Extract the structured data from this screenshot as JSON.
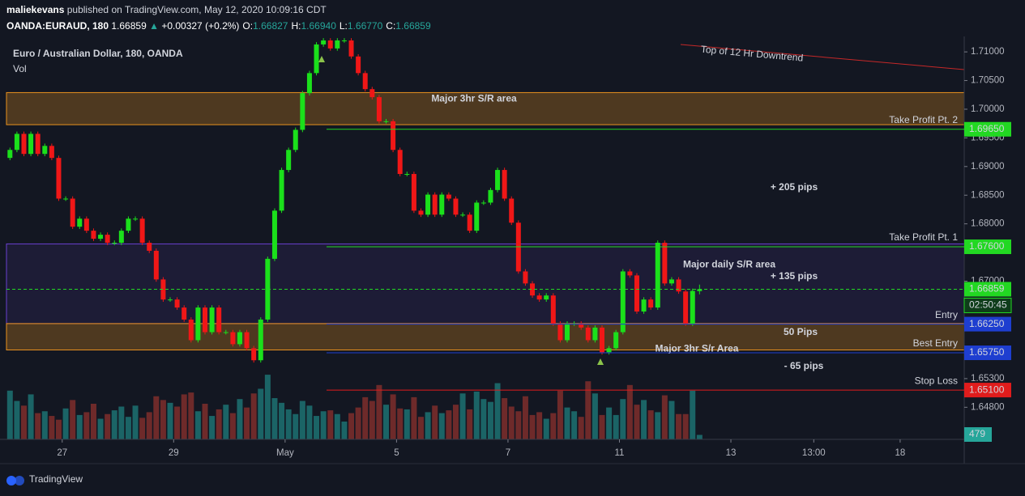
{
  "header": {
    "user": "maliekevans",
    "byline": "published on TradingView.com, May 12, 2020 10:09:16 CDT",
    "symbol": "OANDA:EURAUD, 180",
    "price": "1.66859",
    "arrow": "▲",
    "change": "+0.00327 (+0.2%)",
    "ohlc": [
      {
        "label": "O:",
        "value": "1.66827"
      },
      {
        "label": "H:",
        "value": "1.66940"
      },
      {
        "label": "L:",
        "value": "1.66770"
      },
      {
        "label": "C:",
        "value": "1.66859"
      }
    ]
  },
  "chart_data": {
    "type": "candlestick",
    "title": "Euro / Australian Dollar, 180, OANDA",
    "volume_label": "Vol",
    "open": [
      1.6915,
      1.6929,
      1.6957,
      1.6922,
      1.6957,
      1.6922,
      1.6936,
      1.6915,
      1.6844,
      1.6844,
      1.6795,
      1.6809,
      1.6788,
      1.6774,
      1.6781,
      1.6767,
      1.6767,
      1.6788,
      1.6809,
      1.6809,
      1.6767,
      1.6753,
      1.6703,
      1.6668,
      1.6668,
      1.6654,
      1.6633,
      1.6597,
      1.6654,
      1.6611,
      1.6654,
      1.6611,
      1.6611,
      1.659,
      1.6611,
      1.6583,
      1.6562,
      1.6633,
      1.6739,
      1.6823,
      1.6894,
      1.6929,
      1.6964,
      1.7028,
      1.7063,
      1.7113,
      1.712,
      1.7106,
      1.712,
      1.712,
      1.7092,
      1.7063,
      1.7035,
      1.7021,
      1.6979,
      1.6979,
      1.6929,
      1.6887,
      1.6887,
      1.6823,
      1.6816,
      1.6851,
      1.6816,
      1.6851,
      1.6844,
      1.6816,
      1.6816,
      1.6788,
      1.6837,
      1.6837,
      1.6859,
      1.6894,
      1.6844,
      1.6802,
      1.6717,
      1.6696,
      1.6675,
      1.6668,
      1.6675,
      1.6626,
      1.6597,
      1.6626,
      1.6626,
      1.6619,
      1.6597,
      1.6619,
      1.6576,
      1.6583,
      1.6611,
      1.6717,
      1.671,
      1.6647,
      1.6668,
      1.6654,
      1.6767,
      1.6696,
      1.6703,
      1.6682,
      1.6626,
      1.66827
    ],
    "high": [
      1.6933,
      1.6961,
      1.6961,
      1.6961,
      1.6961,
      1.694,
      1.694,
      1.6919,
      1.6848,
      1.6848,
      1.6813,
      1.6813,
      1.6792,
      1.6785,
      1.6785,
      1.6771,
      1.6792,
      1.6813,
      1.6813,
      1.6813,
      1.6771,
      1.6757,
      1.6707,
      1.6672,
      1.6672,
      1.6658,
      1.6637,
      1.6658,
      1.6658,
      1.6658,
      1.6658,
      1.6615,
      1.6615,
      1.6615,
      1.6615,
      1.6587,
      1.6637,
      1.6743,
      1.6827,
      1.6898,
      1.6933,
      1.6968,
      1.7032,
      1.7067,
      1.7117,
      1.7124,
      1.7124,
      1.7124,
      1.7124,
      1.7124,
      1.7096,
      1.7067,
      1.7039,
      1.7025,
      1.6983,
      1.6983,
      1.6933,
      1.6891,
      1.6891,
      1.6827,
      1.6855,
      1.6855,
      1.6855,
      1.6855,
      1.6848,
      1.682,
      1.682,
      1.6841,
      1.6841,
      1.6863,
      1.6898,
      1.6898,
      1.6848,
      1.6806,
      1.6721,
      1.67,
      1.6679,
      1.6679,
      1.6679,
      1.663,
      1.663,
      1.663,
      1.663,
      1.6623,
      1.6623,
      1.6623,
      1.6587,
      1.6615,
      1.6721,
      1.6721,
      1.6714,
      1.6672,
      1.6672,
      1.6771,
      1.6771,
      1.6707,
      1.6707,
      1.6686,
      1.6687,
      1.6694
    ],
    "low": [
      1.6911,
      1.6925,
      1.6918,
      1.6918,
      1.6918,
      1.6918,
      1.6911,
      1.684,
      1.684,
      1.6791,
      1.6791,
      1.6784,
      1.677,
      1.677,
      1.6763,
      1.6763,
      1.6763,
      1.6784,
      1.6805,
      1.6763,
      1.6749,
      1.6699,
      1.6664,
      1.6664,
      1.665,
      1.6629,
      1.6593,
      1.6593,
      1.6607,
      1.6607,
      1.6607,
      1.6607,
      1.6586,
      1.6586,
      1.6579,
      1.6558,
      1.6558,
      1.6629,
      1.6735,
      1.6819,
      1.689,
      1.6925,
      1.696,
      1.7024,
      1.7059,
      1.7109,
      1.7102,
      1.7102,
      1.7116,
      1.7088,
      1.7059,
      1.7031,
      1.7017,
      1.6975,
      1.6975,
      1.6925,
      1.6883,
      1.6883,
      1.6819,
      1.6812,
      1.6812,
      1.6812,
      1.6812,
      1.684,
      1.6812,
      1.6812,
      1.6784,
      1.6784,
      1.6833,
      1.6833,
      1.6855,
      1.684,
      1.6798,
      1.6713,
      1.6692,
      1.6671,
      1.6664,
      1.6664,
      1.6622,
      1.6593,
      1.6593,
      1.6622,
      1.6615,
      1.6593,
      1.6593,
      1.6572,
      1.6572,
      1.6579,
      1.6607,
      1.6706,
      1.6643,
      1.6643,
      1.665,
      1.665,
      1.6692,
      1.6692,
      1.6678,
      1.6622,
      1.6622,
      1.6677
    ],
    "close": [
      1.6929,
      1.6957,
      1.6922,
      1.6957,
      1.6922,
      1.6936,
      1.6915,
      1.6844,
      1.6844,
      1.6795,
      1.6809,
      1.6788,
      1.6774,
      1.6781,
      1.6767,
      1.6767,
      1.6788,
      1.6809,
      1.6809,
      1.6767,
      1.6753,
      1.6703,
      1.6668,
      1.6668,
      1.6654,
      1.6633,
      1.6597,
      1.6654,
      1.6611,
      1.6654,
      1.6611,
      1.6611,
      1.659,
      1.6611,
      1.6583,
      1.6562,
      1.6633,
      1.6739,
      1.6823,
      1.6894,
      1.6929,
      1.6964,
      1.7028,
      1.7063,
      1.7113,
      1.712,
      1.7106,
      1.712,
      1.712,
      1.7092,
      1.7063,
      1.7035,
      1.7021,
      1.6979,
      1.6979,
      1.6929,
      1.6887,
      1.6887,
      1.6823,
      1.6816,
      1.6851,
      1.6816,
      1.6851,
      1.6844,
      1.6816,
      1.6816,
      1.6788,
      1.6837,
      1.6837,
      1.6859,
      1.6894,
      1.6844,
      1.6802,
      1.6717,
      1.6696,
      1.6675,
      1.6668,
      1.6675,
      1.6626,
      1.6597,
      1.6626,
      1.6626,
      1.6619,
      1.6597,
      1.6619,
      1.6576,
      1.6583,
      1.6611,
      1.6717,
      1.671,
      1.6647,
      1.6668,
      1.6654,
      1.6767,
      1.6696,
      1.6703,
      1.6682,
      1.6626,
      1.6683,
      1.66859
    ],
    "volume": [
      5200,
      4100,
      3600,
      4800,
      2800,
      3000,
      2500,
      2100,
      3300,
      4200,
      2600,
      2900,
      3800,
      2200,
      2700,
      3100,
      3500,
      2400,
      3600,
      2300,
      2900,
      4600,
      4200,
      3900,
      3500,
      4800,
      5000,
      3000,
      3800,
      2500,
      3200,
      3700,
      2800,
      4300,
      3400,
      4900,
      5400,
      6900,
      4400,
      3900,
      3200,
      2700,
      4100,
      3600,
      2500,
      3000,
      3100,
      2700,
      1900,
      2800,
      3400,
      4500,
      4100,
      5800,
      3700,
      4800,
      3300,
      3200,
      4500,
      2400,
      2900,
      3600,
      2800,
      3100,
      3700,
      4900,
      3200,
      5100,
      4300,
      4000,
      6000,
      4400,
      3500,
      3000,
      4600,
      2600,
      2900,
      2200,
      2800,
      5200,
      3400,
      3000,
      2400,
      6200,
      4900,
      2600,
      3400,
      2600,
      4300,
      5800,
      3700,
      4200,
      3100,
      2900,
      4700,
      4100,
      2700,
      2700,
      5200,
      479
    ],
    "colors": {
      "up": "#1be01b",
      "down": "#f01717",
      "vol_up": "#1b6466",
      "vol_down": "#6e2a2a"
    },
    "ylim": [
      1.6424,
      1.7127
    ],
    "yticks": [
      {
        "value": 1.71,
        "label": "1.71000"
      },
      {
        "value": 1.705,
        "label": "1.70500"
      },
      {
        "value": 1.7,
        "label": "1.70000"
      },
      {
        "value": 1.695,
        "label": "1.69500"
      },
      {
        "value": 1.69,
        "label": "1.69000"
      },
      {
        "value": 1.685,
        "label": "1.68500"
      },
      {
        "value": 1.68,
        "label": "1.68000"
      },
      {
        "value": 1.67,
        "label": "1.67000"
      },
      {
        "value": 1.653,
        "label": "1.65300"
      },
      {
        "value": 1.648,
        "label": "1.64800"
      }
    ],
    "xlim": [
      -0.5,
      137
    ],
    "xticks": [
      {
        "value": 7.5,
        "label": "27"
      },
      {
        "value": 23.5,
        "label": "29"
      },
      {
        "value": 39.5,
        "label": "May"
      },
      {
        "value": 55.5,
        "label": "5"
      },
      {
        "value": 71.5,
        "label": "7"
      },
      {
        "value": 87.5,
        "label": "11"
      },
      {
        "value": 103.5,
        "label": "13"
      },
      {
        "value": 115.4,
        "label": "13:00"
      },
      {
        "value": 127.8,
        "label": "18"
      }
    ],
    "vlim": [
      0,
      7600
    ],
    "zones": [
      {
        "label": "Major 3hr S/R area",
        "from": 1.7029,
        "to": 1.6973,
        "color": "#e8921e"
      },
      {
        "label": "Major daily S/R area",
        "from": 1.6765,
        "to": 1.6626,
        "color": "#6a3fd0"
      },
      {
        "label": "Major 3hr S/r Area",
        "from": 1.6626,
        "to": 1.658,
        "color": "#e8921e"
      }
    ],
    "levels": [
      {
        "name": "Take Profit Pt. 2",
        "value": 1.6965,
        "label": "1.69650",
        "color": "#22d822"
      },
      {
        "name": "Take Profit Pt. 1",
        "value": 1.676,
        "label": "1.67600",
        "color": "#22d822"
      },
      {
        "value": 1.66859,
        "label": "1.66859",
        "color": "#22d822",
        "countdown": "02:50:45"
      },
      {
        "name": "Entry",
        "value": 1.6625,
        "label": "1.66250",
        "color": "#1e3ed0"
      },
      {
        "name": "Best Entry",
        "value": 1.6575,
        "label": "1.65750",
        "color": "#1e3ed0"
      },
      {
        "name": "Stop Loss",
        "value": 1.651,
        "label": "1.65100",
        "color": "#e01c1c"
      }
    ],
    "annotations": [
      "+ 205 pips",
      "+ 135 pips",
      "50 Pips",
      "- 65 pips",
      "Top of 12 Hr Downtrend"
    ]
  },
  "footer": {
    "brand": "TradingView"
  }
}
